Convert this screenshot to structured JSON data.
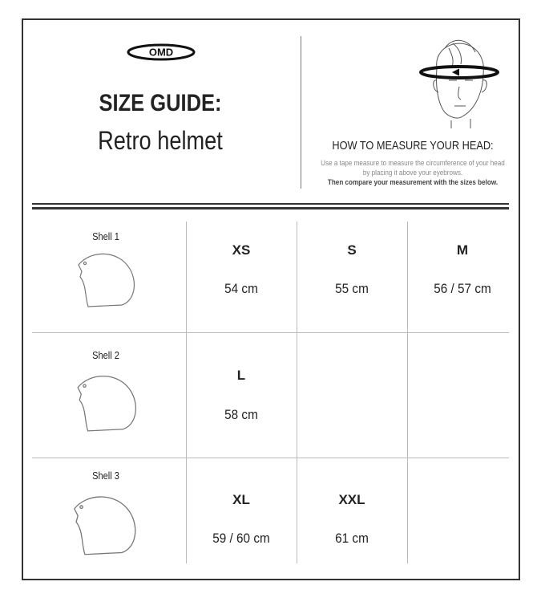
{
  "header": {
    "logo": "OMD",
    "title": "SIZE GUIDE:",
    "subtitle": "Retro helmet",
    "howto_title": "HOW TO MEASURE YOUR HEAD:",
    "instruction": "Use a tape measure to measure the circumference of your head by placing it above your eyebrows.",
    "instruction_bold": "Then compare your measurement with the sizes below."
  },
  "rows": [
    {
      "shell": "Shell 1",
      "sizes": [
        {
          "size": "XS",
          "measure": "54 cm"
        },
        {
          "size": "S",
          "measure": "55 cm"
        },
        {
          "size": "M",
          "measure": "56 / 57 cm"
        }
      ]
    },
    {
      "shell": "Shell 2",
      "sizes": [
        {
          "size": "L",
          "measure": "58 cm"
        }
      ]
    },
    {
      "shell": "Shell 3",
      "sizes": [
        {
          "size": "XL",
          "measure": "59 / 60 cm"
        },
        {
          "size": "XXL",
          "measure": "61 cm"
        }
      ]
    }
  ]
}
